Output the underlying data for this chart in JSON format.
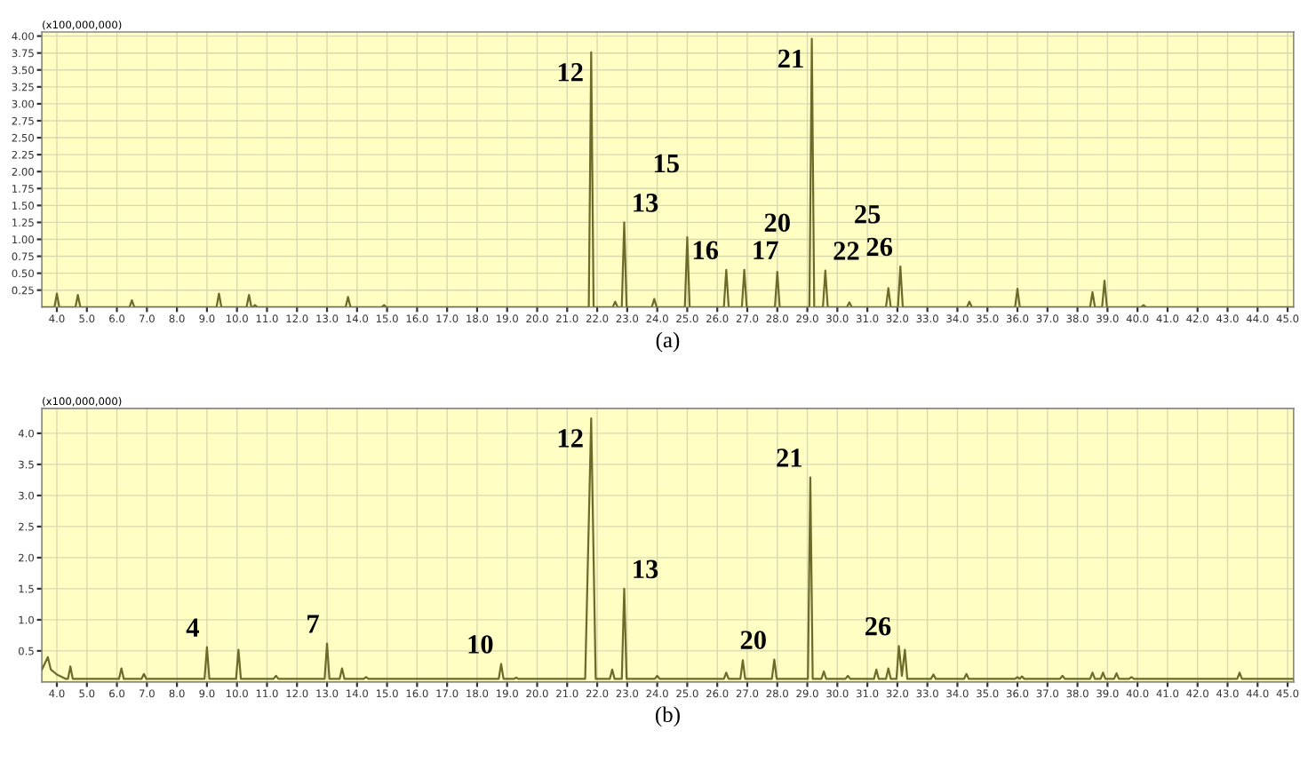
{
  "chart_data": [
    {
      "type": "line",
      "title": "(a)",
      "ylabel": "(x100,000,000)",
      "color": "#6b6b2a",
      "grid": true,
      "marker": "none",
      "line_style": "solid",
      "x": [
        3.5,
        3.92,
        4.0,
        4.08,
        4.62,
        4.7,
        4.78,
        6.42,
        6.5,
        6.58,
        9.32,
        9.4,
        9.48,
        10.32,
        10.4,
        10.48,
        10.52,
        10.6,
        10.68,
        13.62,
        13.7,
        13.78,
        14.82,
        14.9,
        14.98,
        21.72,
        21.8,
        21.88,
        22.52,
        22.6,
        22.68,
        22.82,
        22.9,
        22.98,
        23.82,
        23.9,
        23.98,
        24.92,
        25.0,
        25.08,
        26.22,
        26.3,
        26.38,
        26.82,
        26.9,
        26.98,
        27.92,
        28.0,
        28.08,
        29.07,
        29.15,
        29.23,
        29.52,
        29.6,
        29.68,
        30.32,
        30.4,
        30.48,
        31.62,
        31.7,
        31.78,
        32.02,
        32.1,
        32.18,
        34.32,
        34.4,
        34.48,
        35.92,
        36.0,
        36.08,
        38.42,
        38.5,
        38.58,
        38.82,
        38.9,
        38.98,
        40.12,
        40.2,
        40.28,
        45.2
      ],
      "values": [
        0,
        0,
        0.2,
        0,
        0,
        0.18,
        0,
        0,
        0.1,
        0,
        0,
        0.2,
        0,
        0,
        0.18,
        0,
        0,
        0.03,
        0,
        0,
        0.15,
        0,
        0,
        0.03,
        0,
        0,
        3.76,
        0,
        0,
        0.08,
        0,
        0,
        1.25,
        0,
        0,
        0.12,
        0,
        0,
        1.03,
        0,
        0,
        0.55,
        0,
        0,
        0.55,
        0,
        0,
        0.52,
        0,
        0,
        3.96,
        0,
        0,
        0.54,
        0,
        0,
        0.07,
        0,
        0,
        0.28,
        0,
        0,
        0.6,
        0,
        0,
        0.08,
        0,
        0,
        0.27,
        0,
        0,
        0.22,
        0,
        0,
        0.39,
        0,
        0,
        0.03,
        0,
        0
      ],
      "xlim": [
        3.5,
        45.2
      ],
      "ylim": [
        0,
        4.06
      ],
      "xticks": [
        {
          "value": 4,
          "label": "4.0"
        },
        {
          "value": 5,
          "label": "5.0"
        },
        {
          "value": 6,
          "label": "6.0"
        },
        {
          "value": 7,
          "label": "7.0"
        },
        {
          "value": 8,
          "label": "8.0"
        },
        {
          "value": 9,
          "label": "9.0"
        },
        {
          "value": 10,
          "label": "10.0"
        },
        {
          "value": 11,
          "label": "11.0"
        },
        {
          "value": 12,
          "label": "12.0"
        },
        {
          "value": 13,
          "label": "13.0"
        },
        {
          "value": 14,
          "label": "14.0"
        },
        {
          "value": 15,
          "label": "15.0"
        },
        {
          "value": 16,
          "label": "16.0"
        },
        {
          "value": 17,
          "label": "17.0"
        },
        {
          "value": 18,
          "label": "18.0"
        },
        {
          "value": 19,
          "label": "19.0"
        },
        {
          "value": 20,
          "label": "20.0"
        },
        {
          "value": 21,
          "label": "21.0"
        },
        {
          "value": 22,
          "label": "22.0"
        },
        {
          "value": 23,
          "label": "23.0"
        },
        {
          "value": 24,
          "label": "24.0"
        },
        {
          "value": 25,
          "label": "25.0"
        },
        {
          "value": 26,
          "label": "26.0"
        },
        {
          "value": 27,
          "label": "27.0"
        },
        {
          "value": 28,
          "label": "28.0"
        },
        {
          "value": 29,
          "label": "29.0"
        },
        {
          "value": 30,
          "label": "30.0"
        },
        {
          "value": 31,
          "label": "31.0"
        },
        {
          "value": 32,
          "label": "32.0"
        },
        {
          "value": 33,
          "label": "33.0"
        },
        {
          "value": 34,
          "label": "34.0"
        },
        {
          "value": 35,
          "label": "35.0"
        },
        {
          "value": 36,
          "label": "36.0"
        },
        {
          "value": 37,
          "label": "37.0"
        },
        {
          "value": 38,
          "label": "38.0"
        },
        {
          "value": 39,
          "label": "39.0"
        },
        {
          "value": 40,
          "label": "40.0"
        },
        {
          "value": 41,
          "label": "41.0"
        },
        {
          "value": 42,
          "label": "42.0"
        },
        {
          "value": 43,
          "label": "43.0"
        },
        {
          "value": 44,
          "label": "44.0"
        },
        {
          "value": 45,
          "label": "45.0"
        }
      ],
      "yticks": [
        {
          "value": 0.25,
          "label": "0.25"
        },
        {
          "value": 0.5,
          "label": "0.50"
        },
        {
          "value": 0.75,
          "label": "0.75"
        },
        {
          "value": 1,
          "label": "1.00"
        },
        {
          "value": 1.25,
          "label": "1.25"
        },
        {
          "value": 1.5,
          "label": "1.50"
        },
        {
          "value": 1.75,
          "label": "1.75"
        },
        {
          "value": 2,
          "label": "2.00"
        },
        {
          "value": 2.25,
          "label": "2.25"
        },
        {
          "value": 2.5,
          "label": "2.50"
        },
        {
          "value": 2.75,
          "label": "2.75"
        },
        {
          "value": 3,
          "label": "3.00"
        },
        {
          "value": 3.25,
          "label": "3.25"
        },
        {
          "value": 3.5,
          "label": "3.50"
        },
        {
          "value": 3.75,
          "label": "3.75"
        },
        {
          "value": 4,
          "label": "4.00"
        }
      ],
      "annotations": [
        {
          "text": "12",
          "x": 21.8,
          "y": 3.76
        },
        {
          "text": "13",
          "x": 22.9,
          "y": 1.25
        },
        {
          "text": "15",
          "x": 25.0,
          "y": 1.03
        },
        {
          "text": "16",
          "x": 26.3,
          "y": 0.55
        },
        {
          "text": "17",
          "x": 26.9,
          "y": 0.55
        },
        {
          "text": "20",
          "x": 28.0,
          "y": 0.52
        },
        {
          "text": "21",
          "x": 29.15,
          "y": 3.96
        },
        {
          "text": "22",
          "x": 29.6,
          "y": 0.54
        },
        {
          "text": "25",
          "x": 31.7,
          "y": 0.28
        },
        {
          "text": "26",
          "x": 32.1,
          "y": 0.6
        }
      ]
    },
    {
      "type": "line",
      "title": "(b)",
      "ylabel": "(x100,000,000)",
      "color": "#6b6b2a",
      "grid": true,
      "marker": "none",
      "line_style": "solid",
      "x": [
        3.5,
        3.7,
        3.8,
        4.0,
        4.3,
        4.37,
        4.45,
        4.53,
        6.07,
        6.15,
        6.23,
        6.82,
        6.9,
        6.98,
        8.92,
        9.0,
        9.08,
        9.97,
        10.05,
        10.13,
        11.22,
        11.3,
        11.38,
        12.92,
        13.0,
        13.08,
        13.42,
        13.5,
        13.58,
        14.22,
        14.3,
        14.38,
        18.72,
        18.8,
        18.88,
        19.22,
        19.3,
        19.38,
        21.6,
        21.8,
        21.95,
        22.42,
        22.5,
        22.58,
        22.82,
        22.9,
        22.98,
        23.92,
        24.0,
        24.08,
        26.22,
        26.3,
        26.38,
        26.77,
        26.85,
        26.93,
        27.82,
        27.9,
        27.98,
        29.02,
        29.1,
        29.18,
        29.47,
        29.55,
        29.63,
        30.27,
        30.35,
        30.43,
        31.22,
        31.3,
        31.38,
        31.62,
        31.7,
        31.78,
        31.97,
        32.05,
        32.15,
        32.25,
        32.33,
        33.12,
        33.2,
        33.28,
        34.22,
        34.3,
        34.38,
        35.92,
        36.0,
        36.07,
        36.15,
        36.23,
        37.42,
        37.5,
        37.58,
        38.42,
        38.5,
        38.58,
        38.77,
        38.85,
        38.93,
        39.22,
        39.3,
        39.38,
        39.72,
        39.8,
        39.88,
        43.32,
        43.4,
        43.48,
        45.2
      ],
      "values": [
        0.2,
        0.4,
        0.2,
        0.12,
        0.05,
        0.05,
        0.25,
        0.05,
        0.05,
        0.22,
        0.05,
        0.05,
        0.13,
        0.05,
        0.05,
        0.56,
        0.05,
        0.05,
        0.52,
        0.05,
        0.05,
        0.1,
        0.05,
        0.05,
        0.62,
        0.05,
        0.05,
        0.22,
        0.05,
        0.05,
        0.08,
        0.05,
        0.05,
        0.29,
        0.05,
        0.05,
        0.07,
        0.05,
        0.05,
        4.24,
        0.05,
        0.05,
        0.2,
        0.05,
        0.05,
        1.5,
        0.05,
        0.05,
        0.1,
        0.05,
        0.05,
        0.15,
        0.05,
        0.05,
        0.35,
        0.05,
        0.05,
        0.36,
        0.05,
        0.05,
        3.29,
        0.05,
        0.05,
        0.17,
        0.05,
        0.05,
        0.1,
        0.05,
        0.05,
        0.2,
        0.05,
        0.05,
        0.22,
        0.05,
        0.05,
        0.58,
        0.1,
        0.52,
        0.05,
        0.05,
        0.12,
        0.05,
        0.05,
        0.13,
        0.05,
        0.05,
        0.08,
        0.05,
        0.09,
        0.05,
        0.05,
        0.1,
        0.05,
        0.05,
        0.15,
        0.05,
        0.05,
        0.15,
        0.05,
        0.05,
        0.14,
        0.05,
        0.05,
        0.08,
        0.05,
        0.05,
        0.15,
        0.05,
        0.05
      ],
      "xlim": [
        3.5,
        45.2
      ],
      "ylim": [
        0,
        4.4
      ],
      "xticks": [
        {
          "value": 4,
          "label": "4.0"
        },
        {
          "value": 5,
          "label": "5.0"
        },
        {
          "value": 6,
          "label": "6.0"
        },
        {
          "value": 7,
          "label": "7.0"
        },
        {
          "value": 8,
          "label": "8.0"
        },
        {
          "value": 9,
          "label": "9.0"
        },
        {
          "value": 10,
          "label": "10.0"
        },
        {
          "value": 11,
          "label": "11.0"
        },
        {
          "value": 12,
          "label": "12.0"
        },
        {
          "value": 13,
          "label": "13.0"
        },
        {
          "value": 14,
          "label": "14.0"
        },
        {
          "value": 15,
          "label": "15.0"
        },
        {
          "value": 16,
          "label": "16.0"
        },
        {
          "value": 17,
          "label": "17.0"
        },
        {
          "value": 18,
          "label": "18.0"
        },
        {
          "value": 19,
          "label": "19.0"
        },
        {
          "value": 20,
          "label": "20.0"
        },
        {
          "value": 21,
          "label": "21.0"
        },
        {
          "value": 22,
          "label": "22.0"
        },
        {
          "value": 23,
          "label": "23.0"
        },
        {
          "value": 24,
          "label": "24.0"
        },
        {
          "value": 25,
          "label": "25.0"
        },
        {
          "value": 26,
          "label": "26.0"
        },
        {
          "value": 27,
          "label": "27.0"
        },
        {
          "value": 28,
          "label": "28.0"
        },
        {
          "value": 29,
          "label": "29.0"
        },
        {
          "value": 30,
          "label": "30.0"
        },
        {
          "value": 31,
          "label": "31.0"
        },
        {
          "value": 32,
          "label": "32.0"
        },
        {
          "value": 33,
          "label": "33.0"
        },
        {
          "value": 34,
          "label": "34.0"
        },
        {
          "value": 35,
          "label": "35.0"
        },
        {
          "value": 36,
          "label": "36.0"
        },
        {
          "value": 37,
          "label": "37.0"
        },
        {
          "value": 38,
          "label": "38.0"
        },
        {
          "value": 39,
          "label": "39.0"
        },
        {
          "value": 40,
          "label": "40.0"
        },
        {
          "value": 41,
          "label": "41.0"
        },
        {
          "value": 42,
          "label": "42.0"
        },
        {
          "value": 43,
          "label": "43.0"
        },
        {
          "value": 44,
          "label": "44.0"
        },
        {
          "value": 45,
          "label": "45.0"
        }
      ],
      "yticks": [
        {
          "value": 0.5,
          "label": "0.5"
        },
        {
          "value": 1,
          "label": "1.0"
        },
        {
          "value": 1.5,
          "label": "1.5"
        },
        {
          "value": 2,
          "label": "2.0"
        },
        {
          "value": 2.5,
          "label": "2.5"
        },
        {
          "value": 3,
          "label": "3.0"
        },
        {
          "value": 3.5,
          "label": "3.5"
        },
        {
          "value": 4,
          "label": "4.0"
        }
      ],
      "annotations": [
        {
          "text": "4",
          "x": 9.0,
          "y": 0.56
        },
        {
          "text": "7",
          "x": 13.0,
          "y": 0.62
        },
        {
          "text": "10",
          "x": 18.8,
          "y": 0.29
        },
        {
          "text": "12",
          "x": 21.8,
          "y": 4.24
        },
        {
          "text": "13",
          "x": 22.9,
          "y": 1.5
        },
        {
          "text": "20",
          "x": 27.9,
          "y": 0.36
        },
        {
          "text": "21",
          "x": 29.1,
          "y": 3.29
        },
        {
          "text": "26",
          "x": 32.05,
          "y": 0.58
        }
      ]
    }
  ]
}
